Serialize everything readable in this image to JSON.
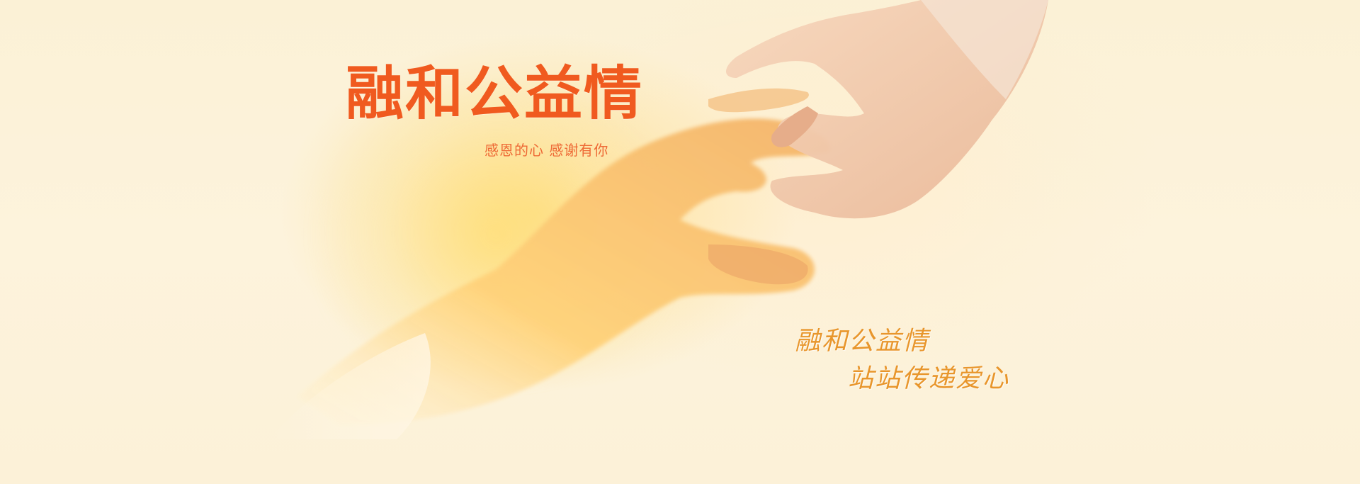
{
  "banner": {
    "headline": "融和公益情",
    "subline": "感恩的心 感谢有你",
    "slogan_line_1": "融和公益情",
    "slogan_line_2": "站站传递爱心"
  },
  "colors": {
    "headline": "#f05a1f",
    "subline": "#ee6a36",
    "slogan": "#e8962c",
    "background": "#fdf4dc"
  }
}
